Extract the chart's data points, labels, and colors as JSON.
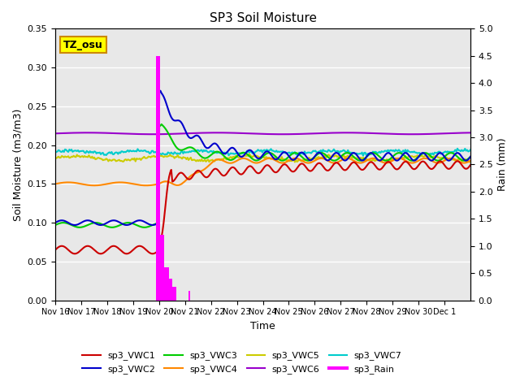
{
  "title": "SP3 Soil Moisture",
  "xlabel": "Time",
  "ylabel_left": "Soil Moisture (m3/m3)",
  "ylabel_right": "Rain (mm)",
  "ylim_left": [
    0.0,
    0.35
  ],
  "ylim_right": [
    0.0,
    5.0
  ],
  "yticks_left": [
    0.0,
    0.05,
    0.1,
    0.15,
    0.2,
    0.25,
    0.3,
    0.35
  ],
  "yticks_right": [
    0.0,
    0.5,
    1.0,
    1.5,
    2.0,
    2.5,
    3.0,
    3.5,
    4.0,
    4.5,
    5.0
  ],
  "bg_color": "#e8e8e8",
  "annotation_text": "TZ_osu",
  "annotation_color": "#ffff00",
  "annotation_border": "#cc8800",
  "legend_items": [
    {
      "label": "sp3_VWC1",
      "color": "#cc0000"
    },
    {
      "label": "sp3_VWC2",
      "color": "#0000cc"
    },
    {
      "label": "sp3_VWC3",
      "color": "#00cc00"
    },
    {
      "label": "sp3_VWC4",
      "color": "#ff8800"
    },
    {
      "label": "sp3_VWC5",
      "color": "#cccc00"
    },
    {
      "label": "sp3_VWC6",
      "color": "#9900cc"
    },
    {
      "label": "sp3_VWC7",
      "color": "#00cccc"
    },
    {
      "label": "sp3_Rain",
      "color": "#ff00ff"
    }
  ],
  "xtick_positions": [
    0,
    1,
    2,
    3,
    4,
    5,
    6,
    7,
    8,
    9,
    10,
    11,
    12,
    13,
    14,
    15
  ],
  "xtick_labels": [
    "Nov 16",
    "Nov 17",
    "Nov 18",
    "Nov 19",
    "Nov 20",
    "Nov 21",
    "Nov 22",
    "Nov 23",
    "Nov 24",
    "Nov 25",
    "Nov 26",
    "Nov 27",
    "Nov 28",
    "Nov 29",
    "Nov 30",
    "Dec 1"
  ]
}
